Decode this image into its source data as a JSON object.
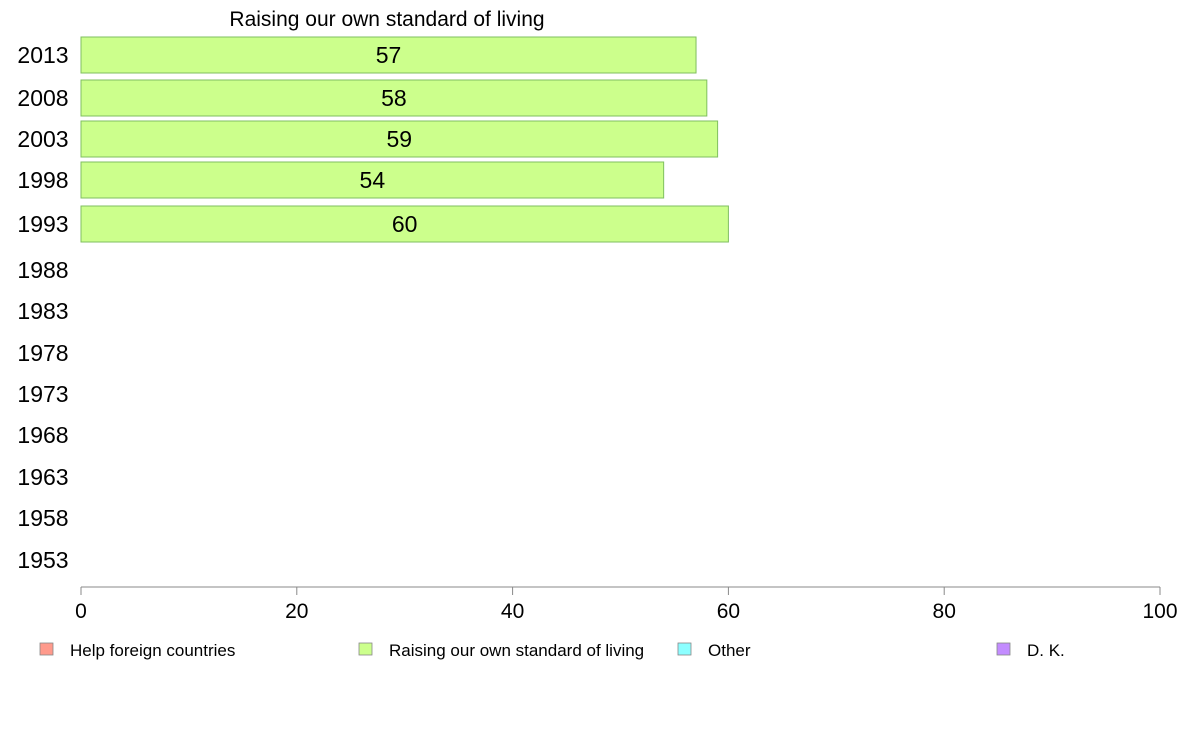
{
  "chart_data": {
    "type": "bar",
    "orientation": "horizontal",
    "title": "Raising our own standard of living",
    "categories": [
      "2013",
      "2008",
      "2003",
      "1998",
      "1993",
      "1988",
      "1983",
      "1978",
      "1973",
      "1968",
      "1963",
      "1958",
      "1953"
    ],
    "series": [
      {
        "name": "Raising our own standard of living",
        "color": "#ccff8c",
        "border": "#7fbf5f",
        "values": [
          57,
          58,
          59,
          54,
          60,
          null,
          null,
          null,
          null,
          null,
          null,
          null,
          null
        ],
        "labels": [
          "57",
          "58",
          "59",
          "54",
          "60",
          "",
          "",
          "",
          "",
          "",
          "",
          "",
          ""
        ]
      }
    ],
    "xlim": [
      0,
      100
    ],
    "xticks": [
      "0",
      "20",
      "40",
      "60",
      "80",
      "100"
    ],
    "grid": false,
    "legend": {
      "placement": "bottom",
      "entries": [
        {
          "label": "Help foreign countries",
          "color": "#ff9a8c"
        },
        {
          "label": "Raising our own standard of living",
          "color": "#ccff8c"
        },
        {
          "label": "Other",
          "color": "#8cffff"
        },
        {
          "label": "D. K.",
          "color": "#c38cff"
        }
      ]
    }
  }
}
